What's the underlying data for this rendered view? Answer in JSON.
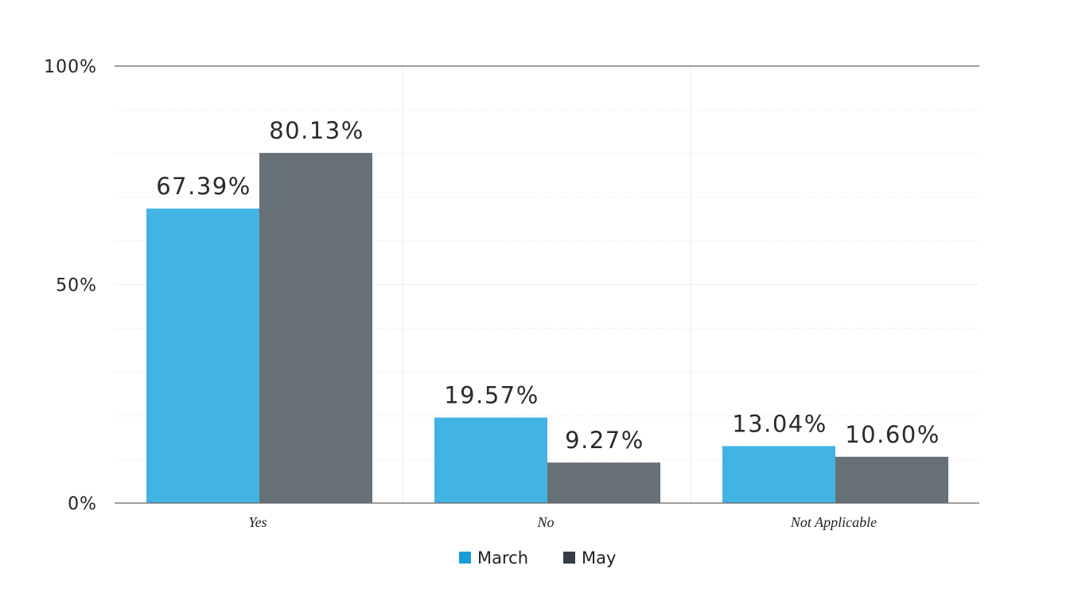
{
  "chart_data": {
    "type": "bar",
    "categories": [
      "Yes",
      "No",
      "Not Applicable"
    ],
    "series": [
      {
        "name": "March",
        "values": [
          67.39,
          19.57,
          13.04
        ],
        "labels": [
          "67.39%",
          "19.57%",
          "13.04%"
        ],
        "color": "#42b4e4",
        "legend_color": "#1a9edb"
      },
      {
        "name": "May",
        "values": [
          80.13,
          9.27,
          10.6
        ],
        "labels": [
          "80.13%",
          "9.27%",
          "10.60%"
        ],
        "color": "#687078",
        "legend_color": "#353d45"
      }
    ],
    "y_ticks": [
      {
        "value": 0,
        "label": "0%"
      },
      {
        "value": 50,
        "label": "50%"
      },
      {
        "value": 100,
        "label": "100%"
      }
    ],
    "ylim": [
      0,
      100
    ],
    "minor_gridline_step": 10,
    "grid": true,
    "legend_position": "bottom-center",
    "title": "",
    "xlabel": "",
    "ylabel": ""
  }
}
